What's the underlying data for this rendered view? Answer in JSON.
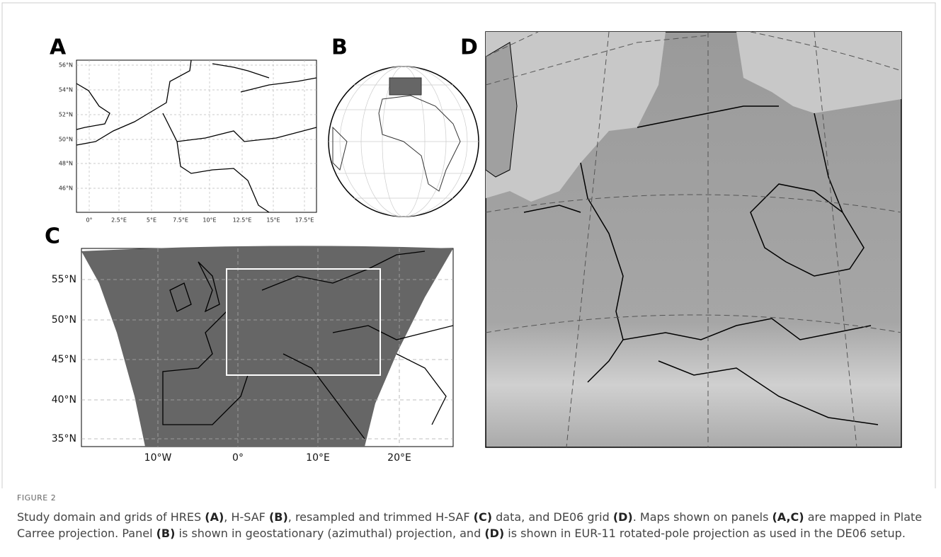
{
  "figure": {
    "panels": {
      "A": {
        "label": "A",
        "y_labels": [
          "56°N",
          "54°N",
          "52°N",
          "50°N",
          "48°N",
          "46°N"
        ],
        "x_labels": [
          "0°",
          "2.5°E",
          "5°E",
          "7.5°E",
          "10°E",
          "12.5°E",
          "15°E",
          "17.5°E"
        ]
      },
      "B": {
        "label": "B"
      },
      "C": {
        "label": "C",
        "y_labels": [
          "55°N",
          "50°N",
          "45°N",
          "40°N",
          "35°N"
        ],
        "x_labels": [
          "10°W",
          "0°",
          "10°E",
          "20°E"
        ]
      },
      "D": {
        "label": "D"
      }
    },
    "caption": {
      "heading": "FIGURE 2",
      "parts": [
        {
          "text": "Study domain and grids of HRES "
        },
        {
          "text": "(A)",
          "bold": true
        },
        {
          "text": ", H-SAF "
        },
        {
          "text": "(B)",
          "bold": true
        },
        {
          "text": ", resampled and trimmed H-SAF "
        },
        {
          "text": "(C)",
          "bold": true
        },
        {
          "text": " data, and DE06 grid "
        },
        {
          "text": "(D)",
          "bold": true
        },
        {
          "text": ". Maps shown on panels "
        },
        {
          "text": "(A,C)",
          "bold": true
        },
        {
          "text": " are mapped in Plate Carree projection. Panel "
        },
        {
          "text": "(B)",
          "bold": true
        },
        {
          "text": " is shown in geostationary (azimuthal) projection, and "
        },
        {
          "text": "(D)",
          "bold": true
        },
        {
          "text": " is shown in EUR-11 rotated-pole projection as used in the DE06 setup."
        }
      ]
    }
  }
}
